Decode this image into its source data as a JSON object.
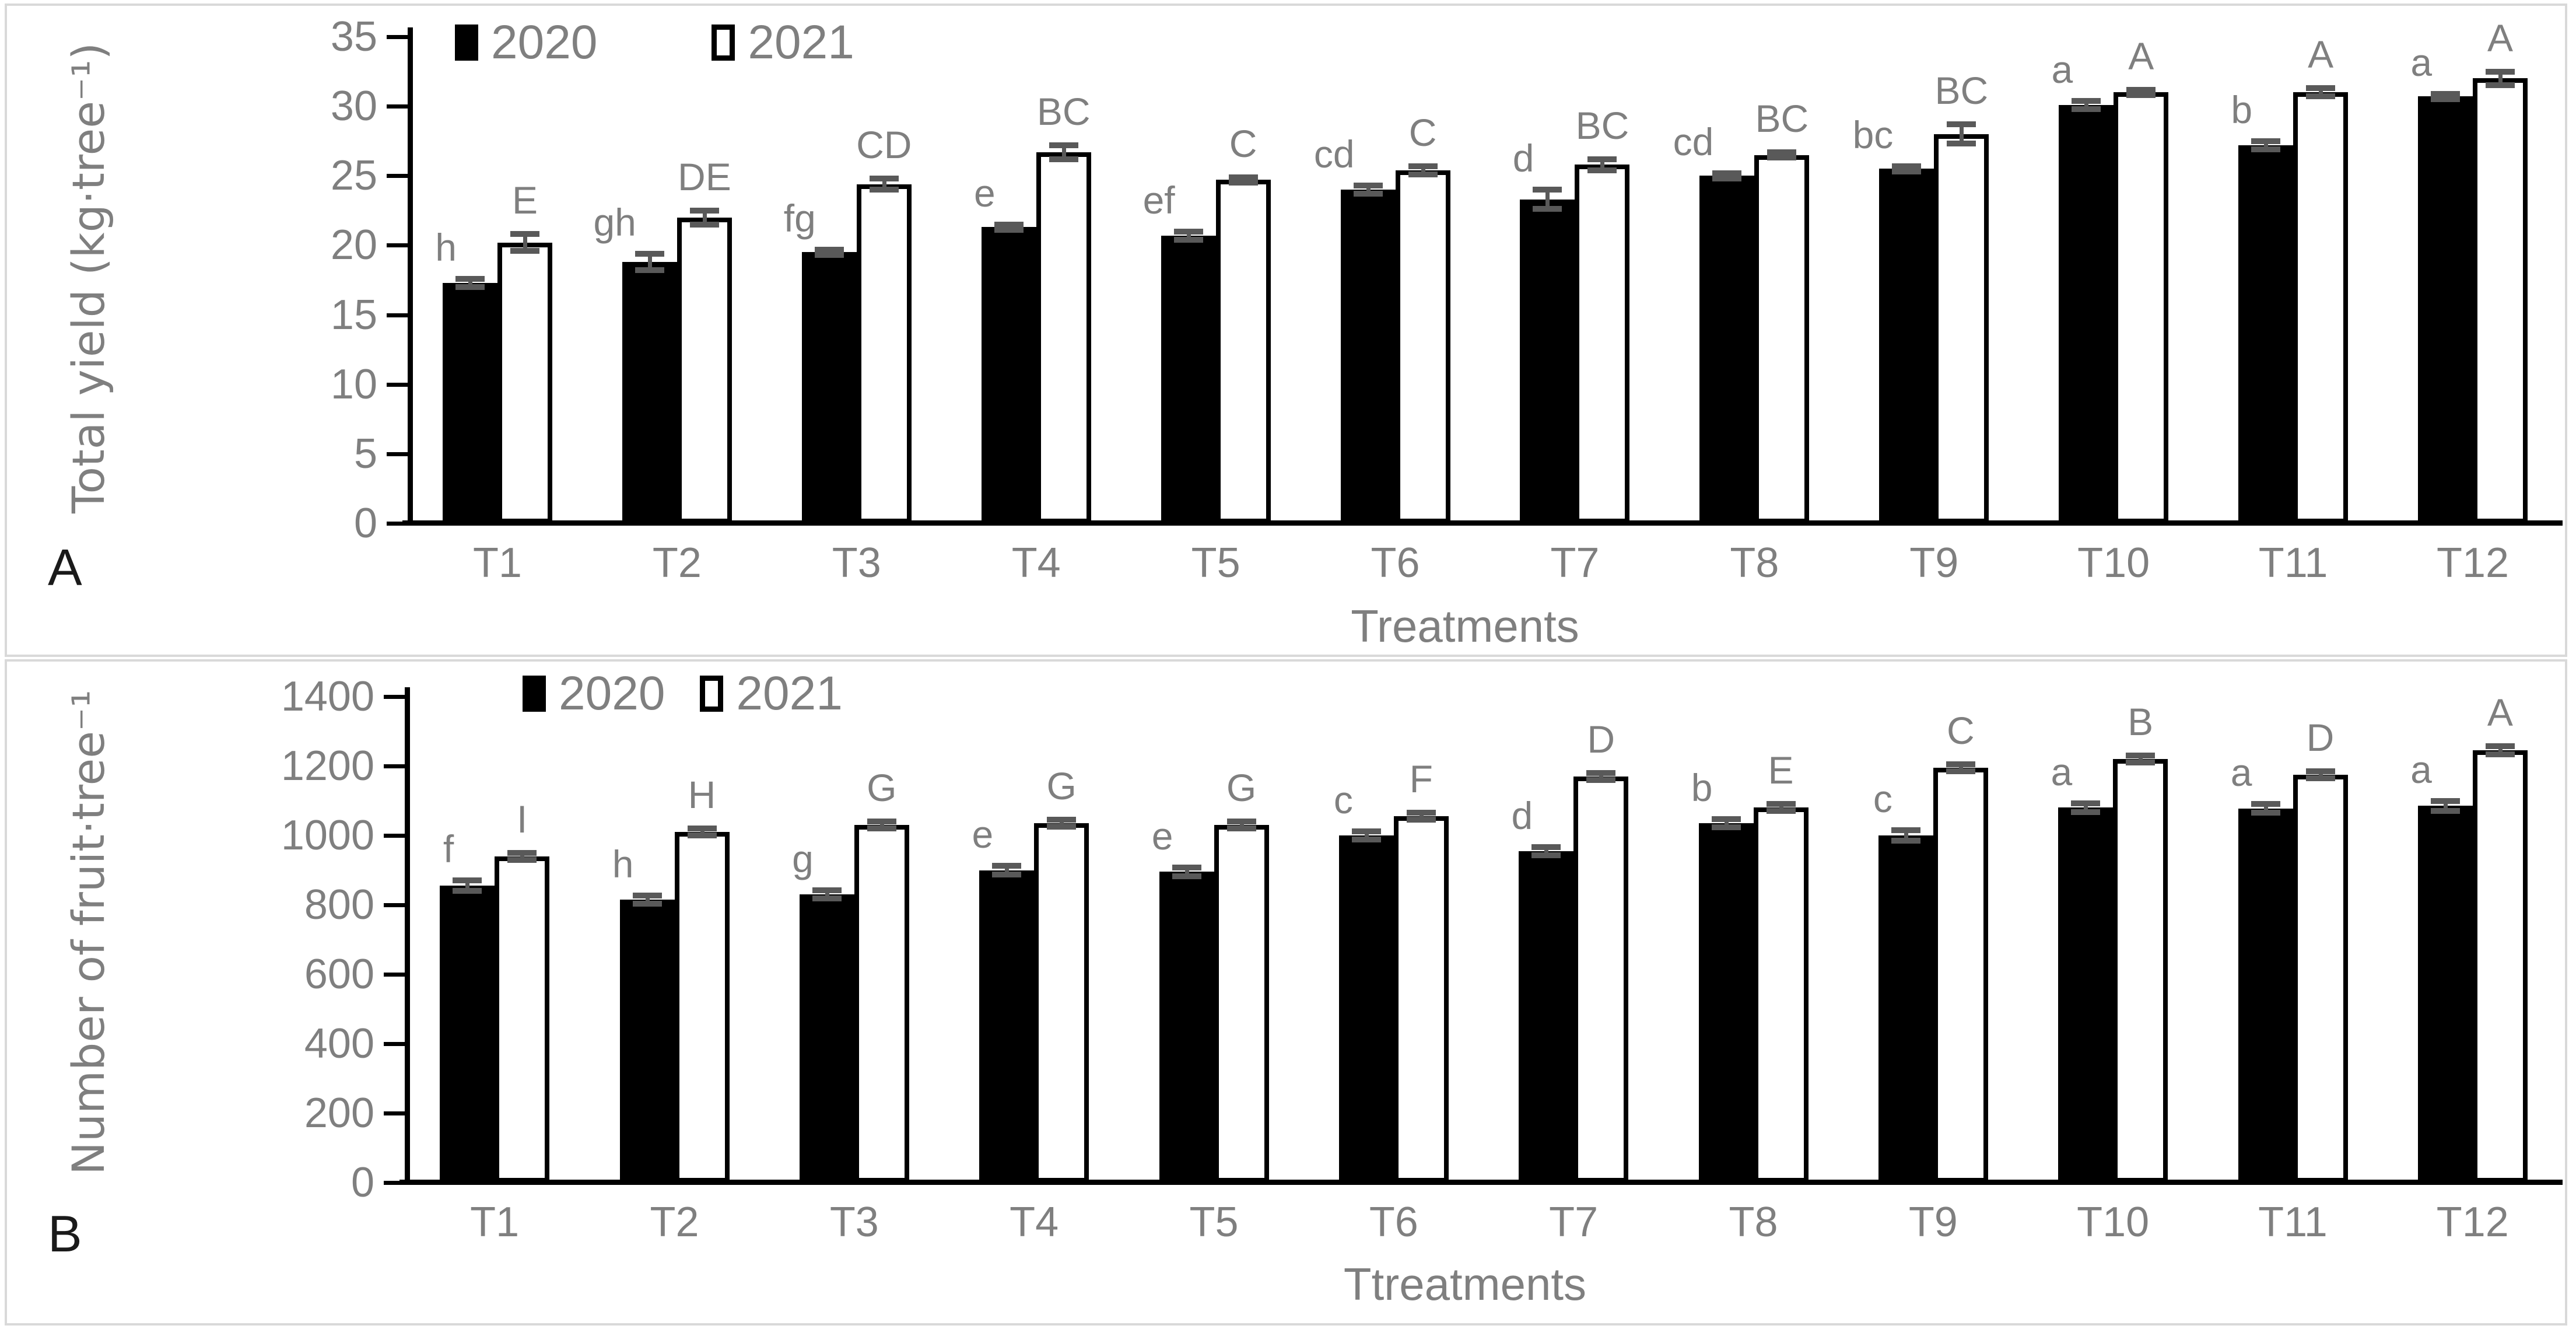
{
  "figure": {
    "background": "#ffffff",
    "panel_border_color": "#d9d9d9",
    "text_color": "#7f7f7f",
    "axis_color": "#000000",
    "error_bar_color": "#595959",
    "bar_fill_2020": "#000000",
    "bar_fill_2021": "#ffffff"
  },
  "chart_data": [
    {
      "panel": "A",
      "type": "bar",
      "xlabel": "Treatments",
      "ylabel": "Total yield (kg·tree⁻¹)",
      "ylim": [
        0,
        35
      ],
      "yticks": [
        0,
        5,
        10,
        15,
        20,
        25,
        30,
        35
      ],
      "grid": false,
      "legend_position": "top-left-inside",
      "categories": [
        "T1",
        "T2",
        "T3",
        "T4",
        "T5",
        "T6",
        "T7",
        "T8",
        "T9",
        "T10",
        "T11",
        "T12"
      ],
      "series": [
        {
          "name": "2020",
          "fill": "#000000",
          "values": [
            17.3,
            18.8,
            19.5,
            21.3,
            20.7,
            24.0,
            23.3,
            25.0,
            25.5,
            30.1,
            27.2,
            30.7
          ],
          "errors": [
            0.3,
            0.6,
            0.2,
            0.2,
            0.3,
            0.3,
            0.7,
            0.2,
            0.2,
            0.3,
            0.3,
            0.2
          ],
          "sig_letters": [
            "h",
            "gh",
            "fg",
            "e",
            "ef",
            "cd",
            "d",
            "cd",
            "bc",
            "a",
            "b",
            "a"
          ]
        },
        {
          "name": "2021",
          "fill": "#ffffff",
          "outline": "#000000",
          "values": [
            20.2,
            22.0,
            24.4,
            26.7,
            24.7,
            25.4,
            25.8,
            26.5,
            28.0,
            31.0,
            31.0,
            32.0
          ],
          "errors": [
            0.6,
            0.5,
            0.4,
            0.5,
            0.2,
            0.3,
            0.4,
            0.2,
            0.7,
            0.2,
            0.3,
            0.5
          ],
          "sig_letters": [
            "E",
            "DE",
            "CD",
            "BC",
            "C",
            "C",
            "BC",
            "BC",
            "BC",
            "A",
            "A",
            "A"
          ]
        }
      ]
    },
    {
      "panel": "B",
      "type": "bar",
      "xlabel": "Ttreatments",
      "ylabel": "Number of fruit·tree⁻¹",
      "ylim": [
        0,
        1400
      ],
      "yticks": [
        0,
        200,
        400,
        600,
        800,
        1000,
        1200,
        1400
      ],
      "grid": false,
      "legend_position": "top-left-inside",
      "categories": [
        "T1",
        "T2",
        "T3",
        "T4",
        "T5",
        "T6",
        "T7",
        "T8",
        "T9",
        "T10",
        "T11",
        "T12"
      ],
      "series": [
        {
          "name": "2020",
          "fill": "#000000",
          "values": [
            855,
            815,
            830,
            900,
            895,
            1000,
            955,
            1035,
            1000,
            1080,
            1078,
            1085
          ],
          "errors": [
            15,
            12,
            12,
            12,
            12,
            12,
            12,
            12,
            15,
            12,
            12,
            15
          ],
          "sig_letters": [
            "f",
            "h",
            "g",
            "e",
            "e",
            "c",
            "d",
            "b",
            "c",
            "a",
            "a",
            "a"
          ]
        },
        {
          "name": "2021",
          "fill": "#ffffff",
          "outline": "#000000",
          "values": [
            940,
            1010,
            1030,
            1035,
            1030,
            1055,
            1170,
            1080,
            1195,
            1220,
            1175,
            1245
          ],
          "errors": [
            10,
            10,
            10,
            10,
            10,
            10,
            10,
            10,
            10,
            10,
            10,
            12
          ],
          "sig_letters": [
            "I",
            "H",
            "G",
            "G",
            "G",
            "F",
            "D",
            "E",
            "C",
            "B",
            "D",
            "A"
          ]
        }
      ]
    }
  ]
}
